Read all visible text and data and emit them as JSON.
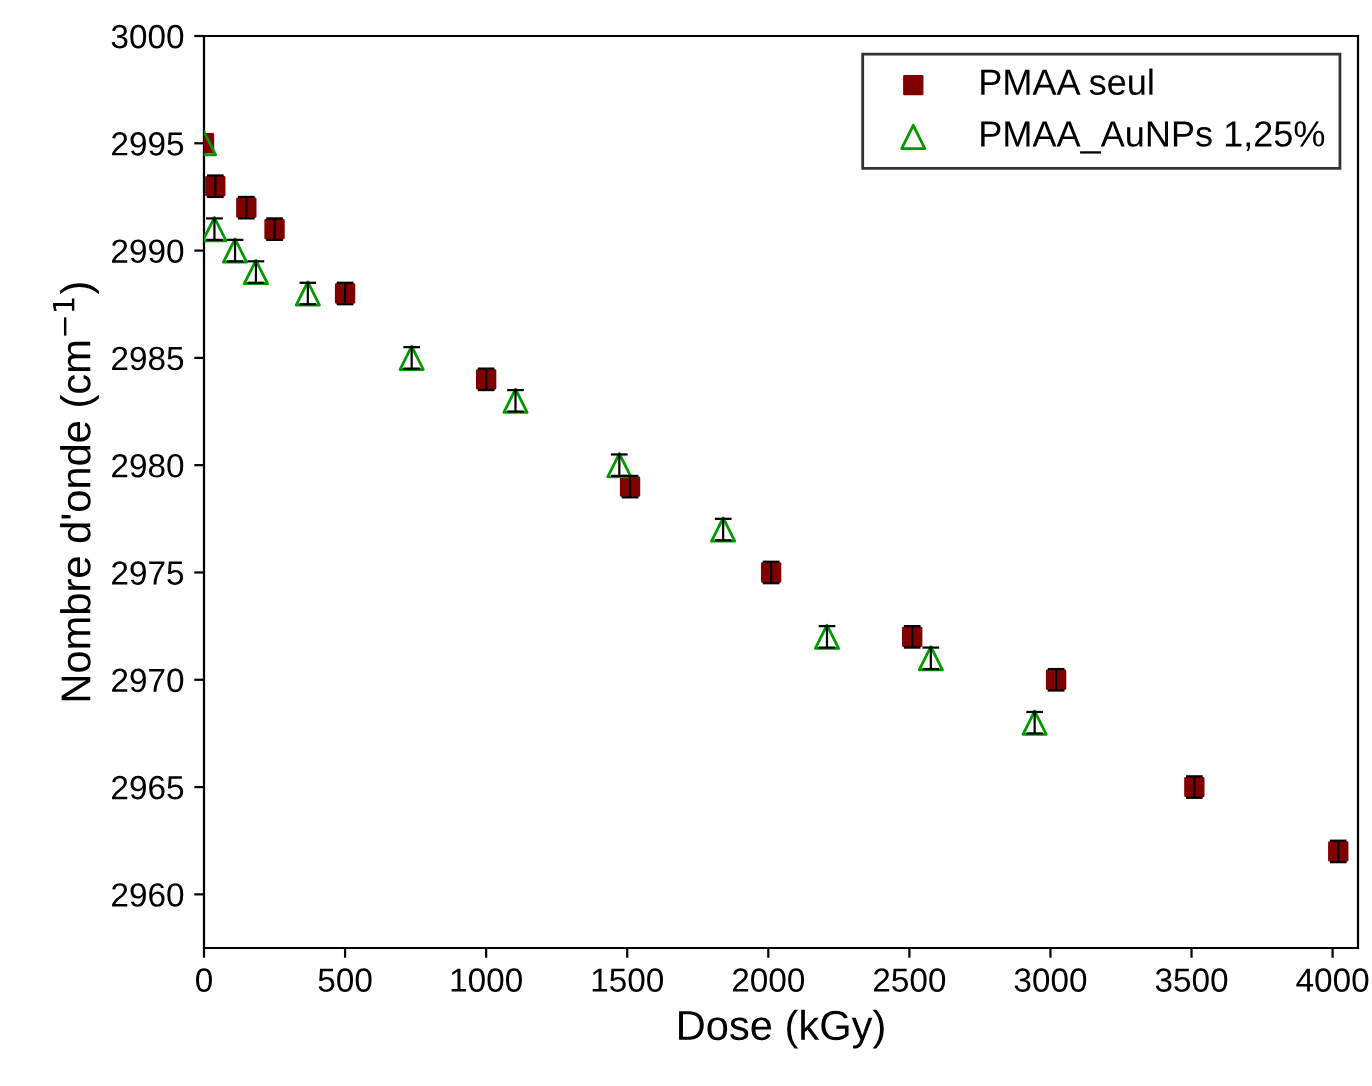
{
  "chart_data": {
    "type": "scatter",
    "xlabel": "Dose (kGy)",
    "ylabel": "Nombre d'onde (cm$^{−1}$)",
    "xlim": [
      0,
      4090
    ],
    "xticks": [
      0,
      500,
      1000,
      1500,
      2000,
      2500,
      3000,
      3500,
      4000
    ],
    "ylim": [
      2957.5,
      3000
    ],
    "yticks": [
      2960,
      2965,
      2970,
      2975,
      2980,
      2985,
      2990,
      2995,
      3000
    ],
    "grid": false,
    "legend": "top right",
    "series": [
      {
        "name": "PMAA seul",
        "color": "#800000",
        "marker": "square",
        "x": [
          0,
          40,
          150,
          250,
          500,
          1000,
          1510,
          2010,
          2510,
          3020,
          3510,
          4020
        ],
        "values": [
          2995,
          2993,
          2992,
          2991,
          2988,
          2984,
          2979,
          2975,
          2972,
          2970,
          2965,
          2962
        ],
        "errors": [
          null,
          0.5,
          0.5,
          0.5,
          0.5,
          0.5,
          0.5,
          0.5,
          0.5,
          0.5,
          0.5,
          0.5
        ]
      },
      {
        "name": "PMAA_AuNPs 1,25%",
        "color": "#009900",
        "marker": "triangle",
        "x": [
          0,
          37,
          110,
          184,
          368,
          736,
          1104,
          1472,
          1840,
          2208,
          2576,
          2944
        ],
        "values": [
          2995,
          2991,
          2990,
          2989,
          2988,
          2985,
          2983,
          2980,
          2977,
          2972,
          2971,
          2968
        ],
        "errors": [
          null,
          0.5,
          0.5,
          0.5,
          0.5,
          0.5,
          0.5,
          0.5,
          0.5,
          0.5,
          0.5,
          0.5
        ]
      }
    ]
  }
}
